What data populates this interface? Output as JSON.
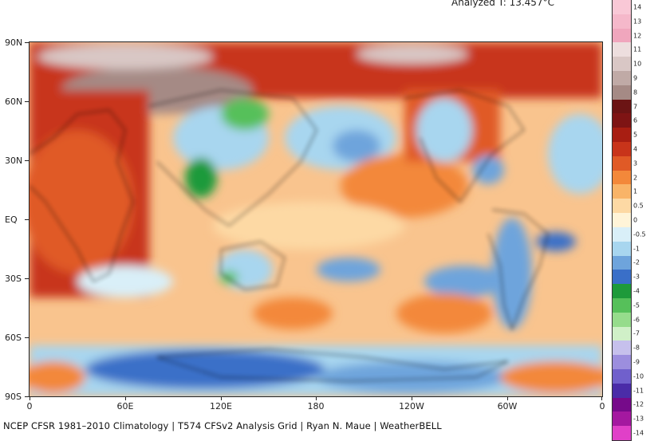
{
  "header": {
    "analyzed_text": "Analyzed T: 13.457°C"
  },
  "map": {
    "lat_labels": [
      "90N",
      "60N",
      "30N",
      "EQ",
      "30S",
      "60S",
      "90S"
    ],
    "lon_labels": [
      "0",
      "60E",
      "120E",
      "180",
      "120W",
      "60W",
      "0"
    ]
  },
  "colorbar": {
    "labels": [
      "14",
      "13",
      "12",
      "11",
      "10",
      "9",
      "8",
      "7",
      "6",
      "5",
      "4",
      "3",
      "2",
      "1",
      "0.5",
      "0",
      "-0.5",
      "-1",
      "-2",
      "-3",
      "-4",
      "-5",
      "-6",
      "-7",
      "-8",
      "-9",
      "-10",
      "-11",
      "-12",
      "-13",
      "-14"
    ],
    "colors": [
      "#f9c8d6",
      "#f5b8ca",
      "#f0a6bd",
      "#eddede",
      "#d9c7c5",
      "#c0aaa6",
      "#a58a85",
      "#6b1414",
      "#7e1414",
      "#a81e12",
      "#c8341a",
      "#e05a26",
      "#f3883a",
      "#f9b468",
      "#fdd9a4",
      "#fff4d8",
      "#d9eff8",
      "#a8d6ef",
      "#6ea4dc",
      "#3a6fc8",
      "#1e9a3a",
      "#56c05a",
      "#96dc8c",
      "#d0f0c8",
      "#c6c0ec",
      "#9c8ede",
      "#7060cc",
      "#4a2ca8",
      "#760a8a",
      "#a418a0",
      "#e040c8"
    ]
  },
  "footer": {
    "credit": "NCEP CFSR 1981–2010 Climatology | T574 CFSv2 Analysis Grid | Ryan N. Maue | WeatherBELL"
  }
}
